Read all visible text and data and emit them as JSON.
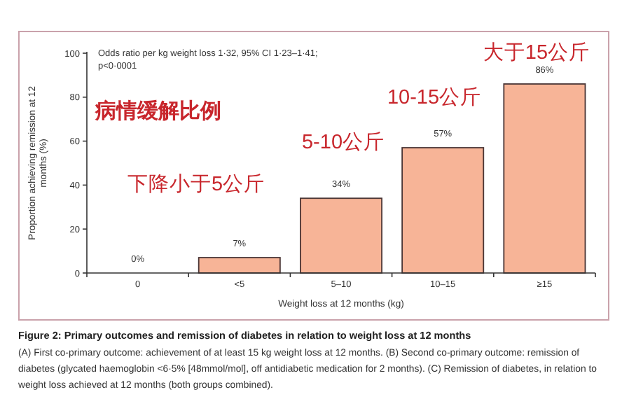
{
  "chart_data": {
    "type": "bar",
    "title": "Figure 2: Primary outcomes and remission of diabetes in relation to weight loss at 12 months",
    "xlabel": "Weight loss at 12 months (kg)",
    "ylabel": "Proportion achieving remission at 12 months (%)",
    "categories": [
      "0",
      "<5",
      "5–10",
      "10–15",
      "≥15"
    ],
    "values": [
      0,
      7,
      34,
      57,
      86
    ],
    "value_labels": [
      "0%",
      "7%",
      "34%",
      "57%",
      "86%"
    ],
    "color": "#f7b497",
    "ylim": [
      0,
      100
    ],
    "yticks": [
      0,
      20,
      40,
      60,
      80,
      100
    ],
    "grid": false,
    "annotations": [
      "Odds ratio per kg weight loss 1·32, 95% CI 1·23–1·41; p<0·0001",
      "病情缓解比例",
      "下降小于5公斤",
      "5-10公斤",
      "10-15公斤",
      "大于15公斤",
      "(A) First co-primary outcome: achievement of at least 15 kg weight loss at 12 months. (B) Second co-primary outcome: remission of diabetes (glycated haemoglobin <6·5% [48mmol/mol], off antidiabetic medication for 2 months). (C) Remission of diabetes, in relation to weight loss achieved at 12 months (both groups combined)."
    ]
  }
}
